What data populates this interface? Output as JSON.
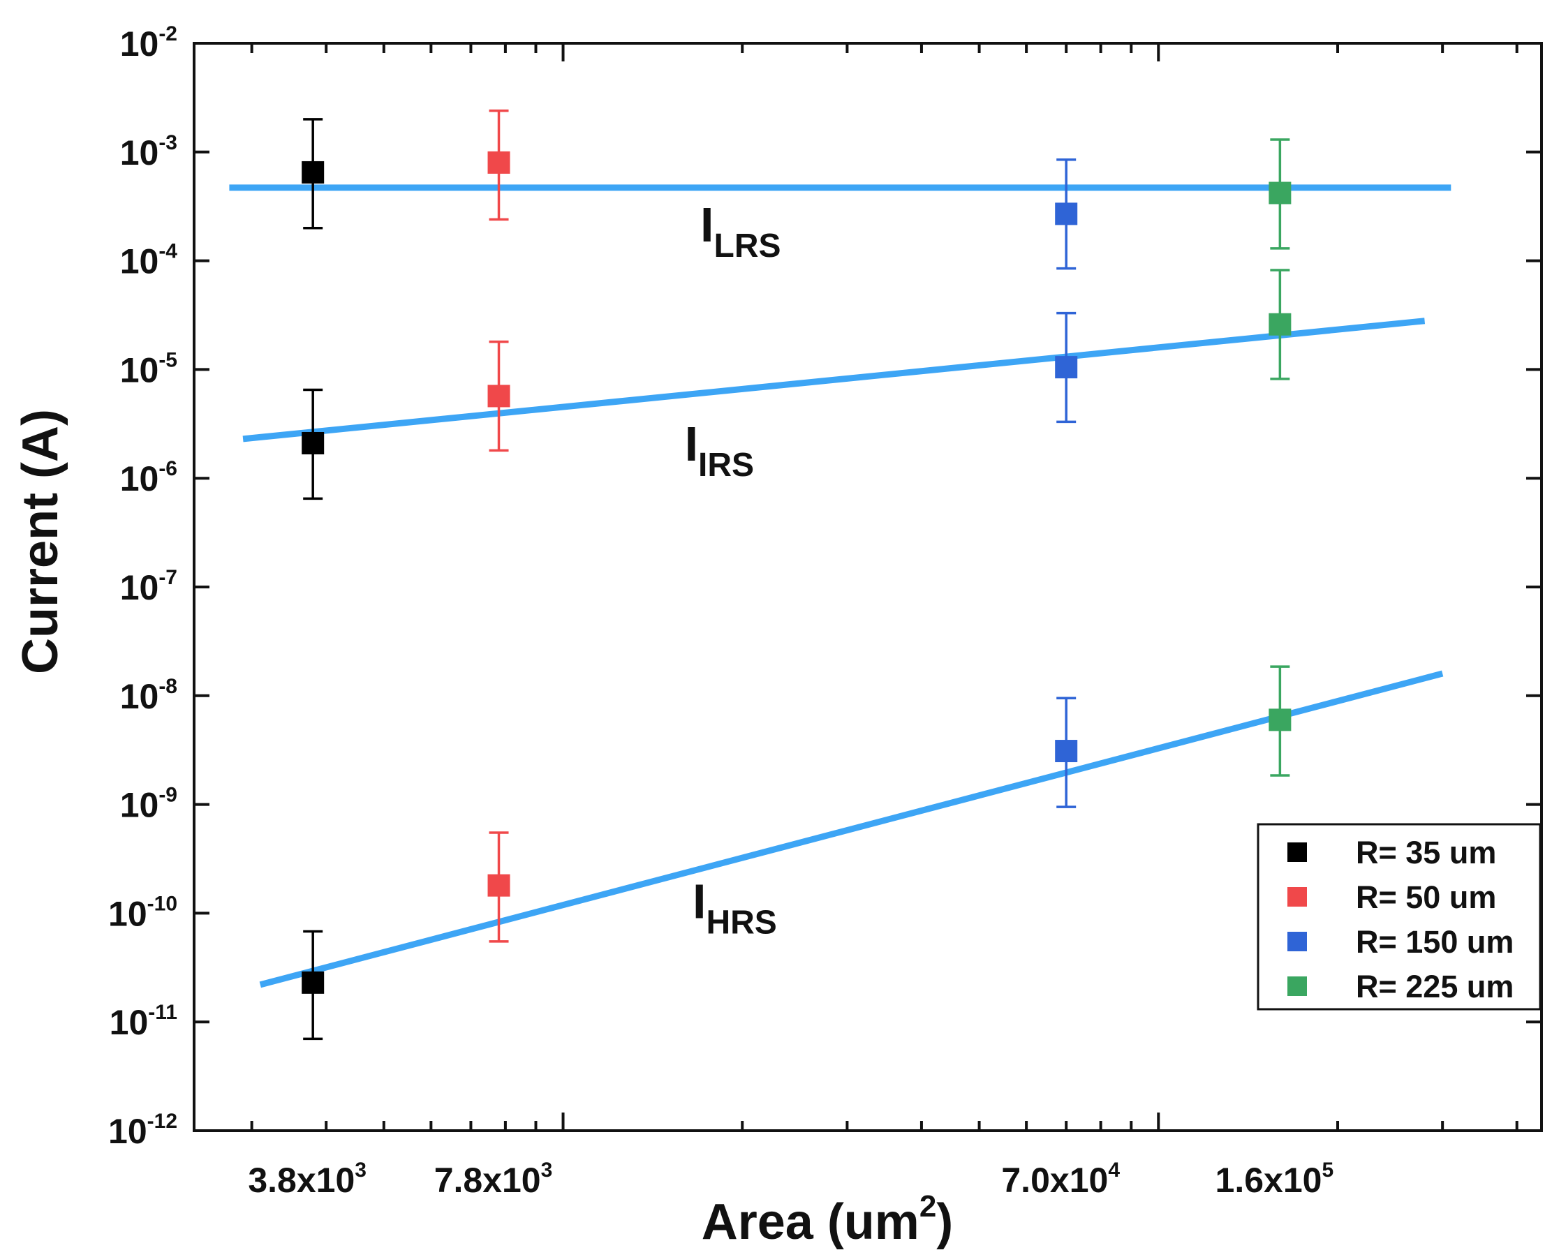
{
  "chart_data": {
    "type": "scatter",
    "title": "",
    "xlabel": "Area (um",
    "xlabel_sup": "2",
    "xlabel_suffix": ")",
    "ylabel": "Current (A)",
    "xscale": "log",
    "yscale": "log",
    "xlim": [
      2400,
      440000
    ],
    "ylim": [
      1e-12,
      0.01
    ],
    "grid": false,
    "legend_position": "right",
    "x_tick_labels": [
      {
        "value": 3800,
        "base": "3.8x10",
        "exp": "3"
      },
      {
        "value": 7800,
        "base": "7.8x10",
        "exp": "3"
      },
      {
        "value": 70000,
        "base": "7.0x10",
        "exp": "4"
      },
      {
        "value": 160000,
        "base": "1.6x10",
        "exp": "5"
      }
    ],
    "y_tick_labels": [
      {
        "value": 0.01,
        "base": "10",
        "exp": "-2"
      },
      {
        "value": 0.001,
        "base": "10",
        "exp": "-3"
      },
      {
        "value": 0.0001,
        "base": "10",
        "exp": "-4"
      },
      {
        "value": 1e-05,
        "base": "10",
        "exp": "-5"
      },
      {
        "value": 1e-06,
        "base": "10",
        "exp": "-6"
      },
      {
        "value": 1e-07,
        "base": "10",
        "exp": "-7"
      },
      {
        "value": 1e-08,
        "base": "10",
        "exp": "-8"
      },
      {
        "value": 1e-09,
        "base": "10",
        "exp": "-9"
      },
      {
        "value": 1e-10,
        "base": "10",
        "exp": "-10"
      },
      {
        "value": 1e-11,
        "base": "10",
        "exp": "-11"
      },
      {
        "value": 1e-12,
        "base": "10",
        "exp": "-12"
      }
    ],
    "series": [
      {
        "name": "R= 35 um",
        "color": "#000000",
        "x": 3800,
        "points": [
          {
            "state": "LRS",
            "y": 0.00065,
            "lo": 0.0002,
            "hi": 0.002
          },
          {
            "state": "IRS",
            "y": 2.1e-06,
            "lo": 6.5e-07,
            "hi": 6.5e-06
          },
          {
            "state": "HRS",
            "y": 2.3e-11,
            "lo": 7e-12,
            "hi": 6.8e-11
          }
        ]
      },
      {
        "name": "R= 50 um",
        "color": "#f0484a",
        "x": 7800,
        "points": [
          {
            "state": "LRS",
            "y": 0.0008,
            "lo": 0.00024,
            "hi": 0.0024
          },
          {
            "state": "IRS",
            "y": 5.7e-06,
            "lo": 1.8e-06,
            "hi": 1.8e-05
          },
          {
            "state": "HRS",
            "y": 1.8e-10,
            "lo": 5.5e-11,
            "hi": 5.5e-10
          }
        ]
      },
      {
        "name": "R= 150 um",
        "color": "#2f64d6",
        "x": 70000,
        "points": [
          {
            "state": "LRS",
            "y": 0.00027,
            "lo": 8.5e-05,
            "hi": 0.00085
          },
          {
            "state": "IRS",
            "y": 1.05e-05,
            "lo": 3.3e-06,
            "hi": 3.3e-05
          },
          {
            "state": "HRS",
            "y": 3.1e-09,
            "lo": 9.5e-10,
            "hi": 9.5e-09
          }
        ]
      },
      {
        "name": "R= 225 um",
        "color": "#3aa660",
        "x": 160000,
        "points": [
          {
            "state": "LRS",
            "y": 0.00042,
            "lo": 0.00013,
            "hi": 0.0013
          },
          {
            "state": "IRS",
            "y": 2.6e-05,
            "lo": 8.2e-06,
            "hi": 8.2e-05
          },
          {
            "state": "HRS",
            "y": 6e-09,
            "lo": 1.85e-09,
            "hi": 1.85e-08
          }
        ]
      }
    ],
    "fit_lines": [
      {
        "name": "I_LRS",
        "label_main": "I",
        "label_sub": "LRS",
        "color": "#3da5f5",
        "x_start": 2750,
        "y_start": 0.00047,
        "x_end": 310000,
        "y_end": 0.00047,
        "label_x": 17000,
        "label_y": 0.00015
      },
      {
        "name": "I_IRS",
        "label_main": "I",
        "label_sub": "IRS",
        "color": "#3da5f5",
        "x_start": 2900,
        "y_start": 2.3e-06,
        "x_end": 280000,
        "y_end": 2.8e-05,
        "label_x": 16000,
        "label_y": 1.45e-06
      },
      {
        "name": "I_HRS",
        "label_main": "I",
        "label_sub": "HRS",
        "color": "#3da5f5",
        "x_start": 3100,
        "y_start": 2.2e-11,
        "x_end": 300000,
        "y_end": 1.6e-08,
        "label_x": 16500,
        "label_y": 9e-11
      }
    ]
  }
}
